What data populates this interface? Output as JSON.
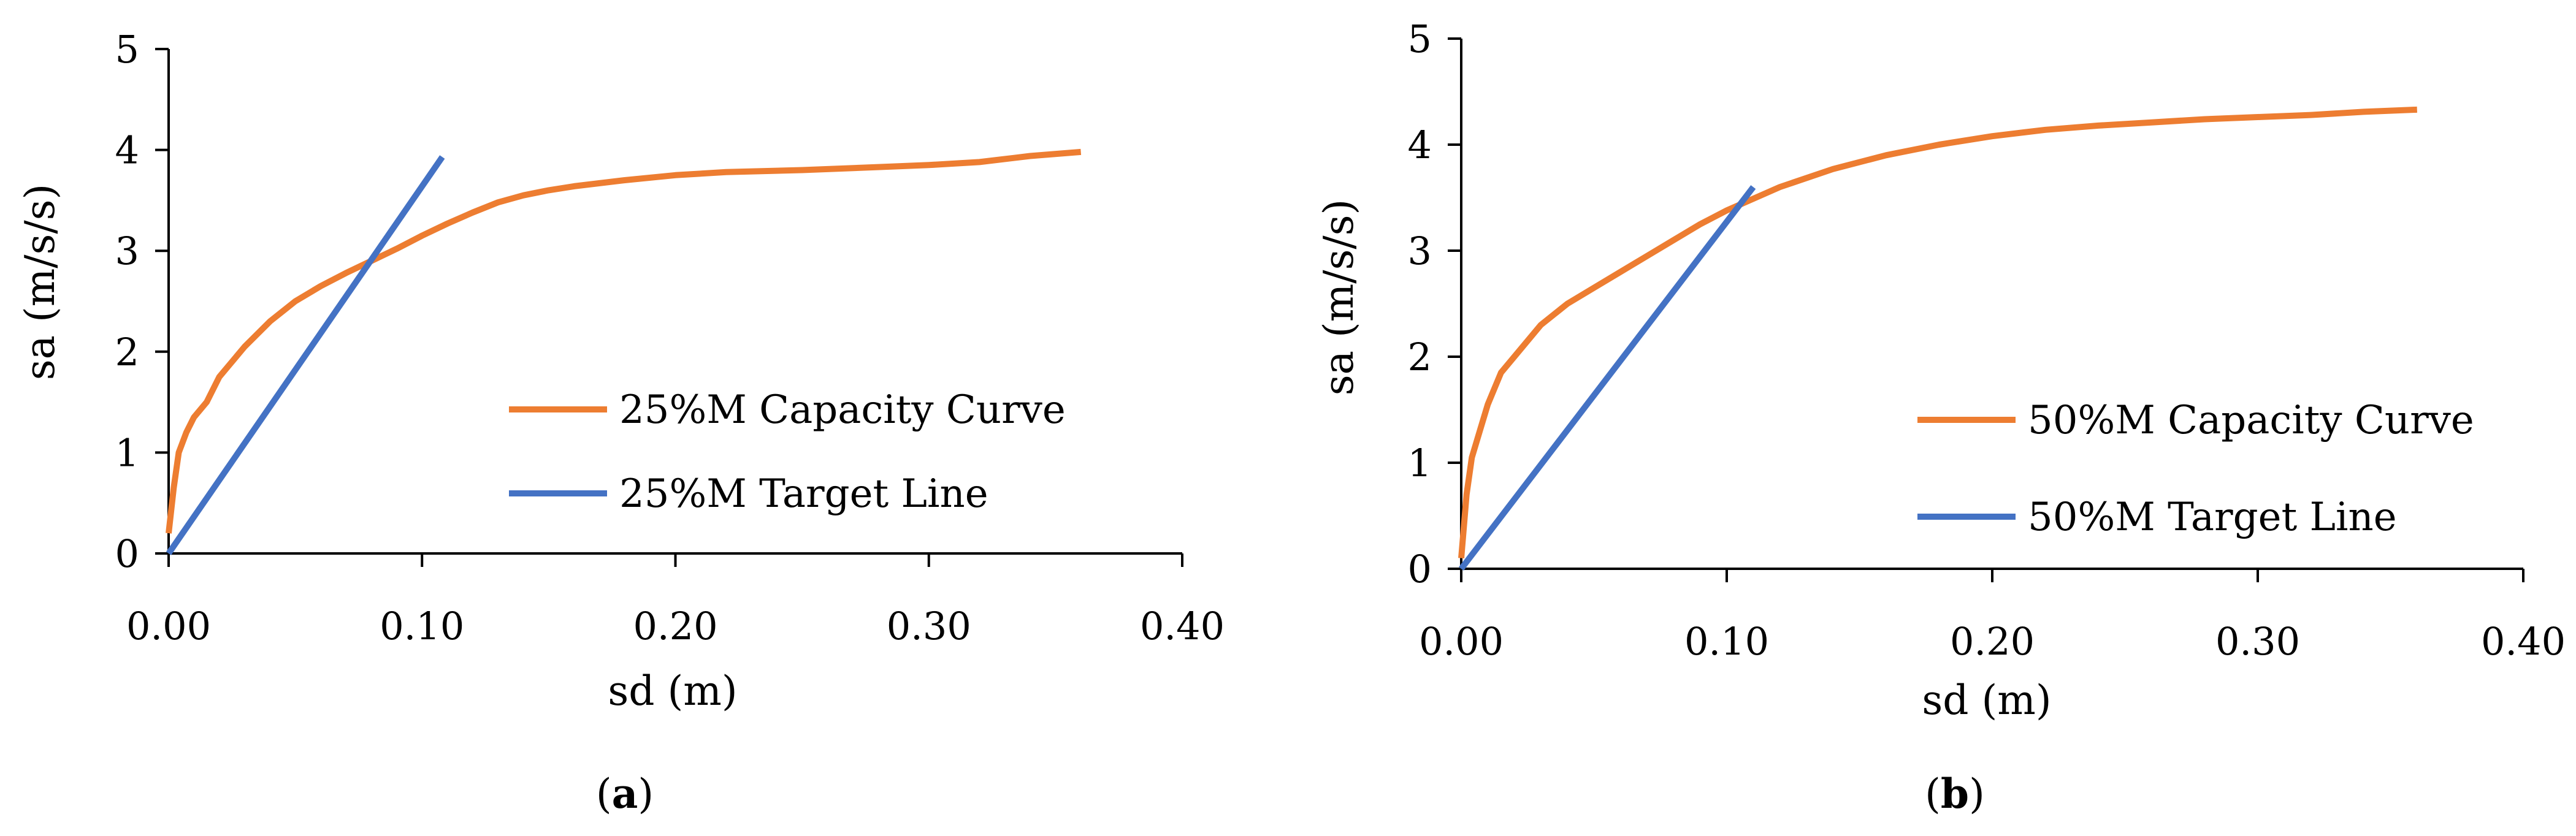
{
  "chart_data": [
    {
      "type": "line",
      "id": "a",
      "caption_open": "(",
      "caption_letter": "a",
      "caption_close": ")",
      "xlabel": "sd (m)",
      "ylabel": "sa (m/s/s)",
      "xlim": [
        0,
        0.4
      ],
      "ylim": [
        0,
        5
      ],
      "x_ticks": [
        0,
        0.1,
        0.2,
        0.3,
        0.4
      ],
      "x_tick_labels": [
        "0.00",
        "0.10",
        "0.20",
        "0.30",
        "0.40"
      ],
      "y_ticks": [
        0,
        1,
        2,
        3,
        4,
        5
      ],
      "y_tick_labels": [
        "0",
        "1",
        "2",
        "3",
        "4",
        "5"
      ],
      "legend_position": "center-right",
      "series": [
        {
          "name": "25%M Capacity Curve",
          "color": "#ED7D31",
          "x": [
            0.0,
            0.002,
            0.004,
            0.007,
            0.01,
            0.015,
            0.02,
            0.03,
            0.04,
            0.05,
            0.06,
            0.07,
            0.08,
            0.09,
            0.1,
            0.11,
            0.12,
            0.13,
            0.14,
            0.15,
            0.16,
            0.18,
            0.2,
            0.22,
            0.25,
            0.28,
            0.3,
            0.32,
            0.34,
            0.36
          ],
          "y": [
            0.2,
            0.65,
            1.0,
            1.2,
            1.35,
            1.5,
            1.75,
            2.05,
            2.3,
            2.5,
            2.65,
            2.78,
            2.9,
            3.02,
            3.15,
            3.27,
            3.38,
            3.48,
            3.55,
            3.6,
            3.64,
            3.7,
            3.75,
            3.78,
            3.8,
            3.83,
            3.85,
            3.88,
            3.94,
            3.98
          ]
        },
        {
          "name": "25%M Target Line",
          "color": "#4472C4",
          "x": [
            0.0,
            0.108
          ],
          "y": [
            0.0,
            3.93
          ]
        }
      ]
    },
    {
      "type": "line",
      "id": "b",
      "caption_open": "(",
      "caption_letter": "b",
      "caption_close": ")",
      "xlabel": "sd (m)",
      "ylabel": "sa (m/s/s)",
      "xlim": [
        0,
        0.4
      ],
      "ylim": [
        0,
        5
      ],
      "x_ticks": [
        0,
        0.1,
        0.2,
        0.3,
        0.4
      ],
      "x_tick_labels": [
        "0.00",
        "0.10",
        "0.20",
        "0.30",
        "0.40"
      ],
      "y_ticks": [
        0,
        1,
        2,
        3,
        4,
        5
      ],
      "y_tick_labels": [
        "0",
        "1",
        "2",
        "3",
        "4",
        "5"
      ],
      "legend_position": "center-right",
      "series": [
        {
          "name": "50%M Capacity Curve",
          "color": "#ED7D31",
          "x": [
            0.0,
            0.002,
            0.004,
            0.007,
            0.01,
            0.015,
            0.02,
            0.03,
            0.04,
            0.05,
            0.06,
            0.07,
            0.08,
            0.09,
            0.1,
            0.12,
            0.14,
            0.16,
            0.18,
            0.2,
            0.22,
            0.24,
            0.26,
            0.28,
            0.3,
            0.32,
            0.34,
            0.36
          ],
          "y": [
            0.1,
            0.7,
            1.05,
            1.3,
            1.55,
            1.85,
            2.0,
            2.3,
            2.5,
            2.65,
            2.8,
            2.95,
            3.1,
            3.25,
            3.38,
            3.6,
            3.77,
            3.9,
            4.0,
            4.08,
            4.14,
            4.18,
            4.21,
            4.24,
            4.26,
            4.28,
            4.31,
            4.33
          ]
        },
        {
          "name": "50%M Target Line",
          "color": "#4472C4",
          "x": [
            0.0,
            0.11
          ],
          "y": [
            0.0,
            3.6
          ]
        }
      ]
    }
  ]
}
